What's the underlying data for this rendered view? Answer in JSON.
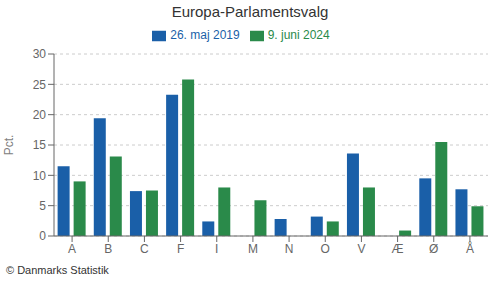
{
  "chart_data": {
    "type": "bar",
    "title": "Europa-Parlamentsvalg",
    "ylabel": "Pct.",
    "categories": [
      "A",
      "B",
      "C",
      "F",
      "I",
      "M",
      "N",
      "O",
      "V",
      "Æ",
      "Ø",
      "Å"
    ],
    "series": [
      {
        "name": "26. maj 2019",
        "color": "#1a5fa8",
        "values": [
          11.5,
          19.4,
          7.4,
          23.3,
          2.4,
          0,
          2.8,
          3.2,
          13.6,
          0,
          9.5,
          7.7
        ]
      },
      {
        "name": "9. juni 2024",
        "color": "#2a8a4a",
        "values": [
          9.0,
          13.1,
          7.5,
          25.8,
          8.0,
          5.9,
          0,
          2.4,
          8.0,
          0.9,
          15.5,
          4.9
        ]
      }
    ],
    "ylim": [
      0,
      30
    ],
    "yticks": [
      0,
      5,
      10,
      15,
      20,
      25,
      30
    ],
    "grid": true,
    "legend": "top",
    "annotations": [
      "© Danmarks Statistik"
    ]
  }
}
